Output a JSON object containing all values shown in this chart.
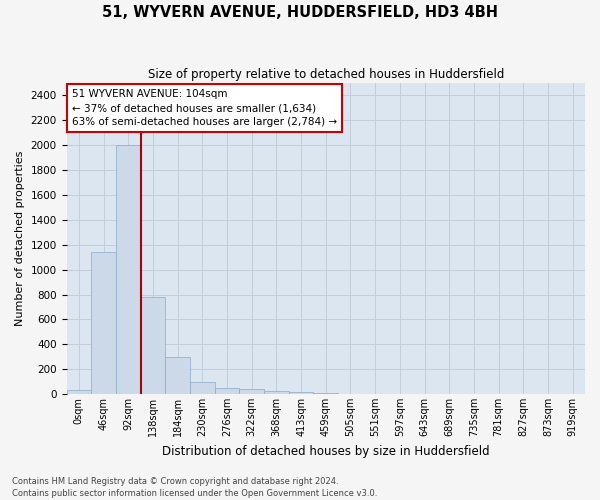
{
  "title_line1": "51, WYVERN AVENUE, HUDDERSFIELD, HD3 4BH",
  "title_line2": "Size of property relative to detached houses in Huddersfield",
  "xlabel": "Distribution of detached houses by size in Huddersfield",
  "ylabel": "Number of detached properties",
  "footnote1": "Contains HM Land Registry data © Crown copyright and database right 2024.",
  "footnote2": "Contains public sector information licensed under the Open Government Licence v3.0.",
  "bar_labels": [
    "0sqm",
    "46sqm",
    "92sqm",
    "138sqm",
    "184sqm",
    "230sqm",
    "276sqm",
    "322sqm",
    "368sqm",
    "413sqm",
    "459sqm",
    "505sqm",
    "551sqm",
    "597sqm",
    "643sqm",
    "689sqm",
    "735sqm",
    "781sqm",
    "827sqm",
    "873sqm",
    "919sqm"
  ],
  "bar_values": [
    30,
    1140,
    2000,
    780,
    295,
    95,
    50,
    40,
    25,
    15,
    5,
    0,
    0,
    0,
    0,
    0,
    0,
    0,
    0,
    0,
    0
  ],
  "bar_color": "#ccd9e8",
  "bar_edge_color": "#8aaac8",
  "grid_color": "#c5cdd8",
  "background_color": "#dce6f0",
  "red_line_x": 2.5,
  "annotation_text": "51 WYVERN AVENUE: 104sqm\n← 37% of detached houses are smaller (1,634)\n63% of semi-detached houses are larger (2,784) →",
  "annotation_box_color": "#ffffff",
  "annotation_box_edge": "#cc0000",
  "red_line_color": "#aa0000",
  "ylim_max": 2500,
  "yticks": [
    0,
    200,
    400,
    600,
    800,
    1000,
    1200,
    1400,
    1600,
    1800,
    2000,
    2200,
    2400
  ],
  "fig_bg": "#f5f5f5"
}
